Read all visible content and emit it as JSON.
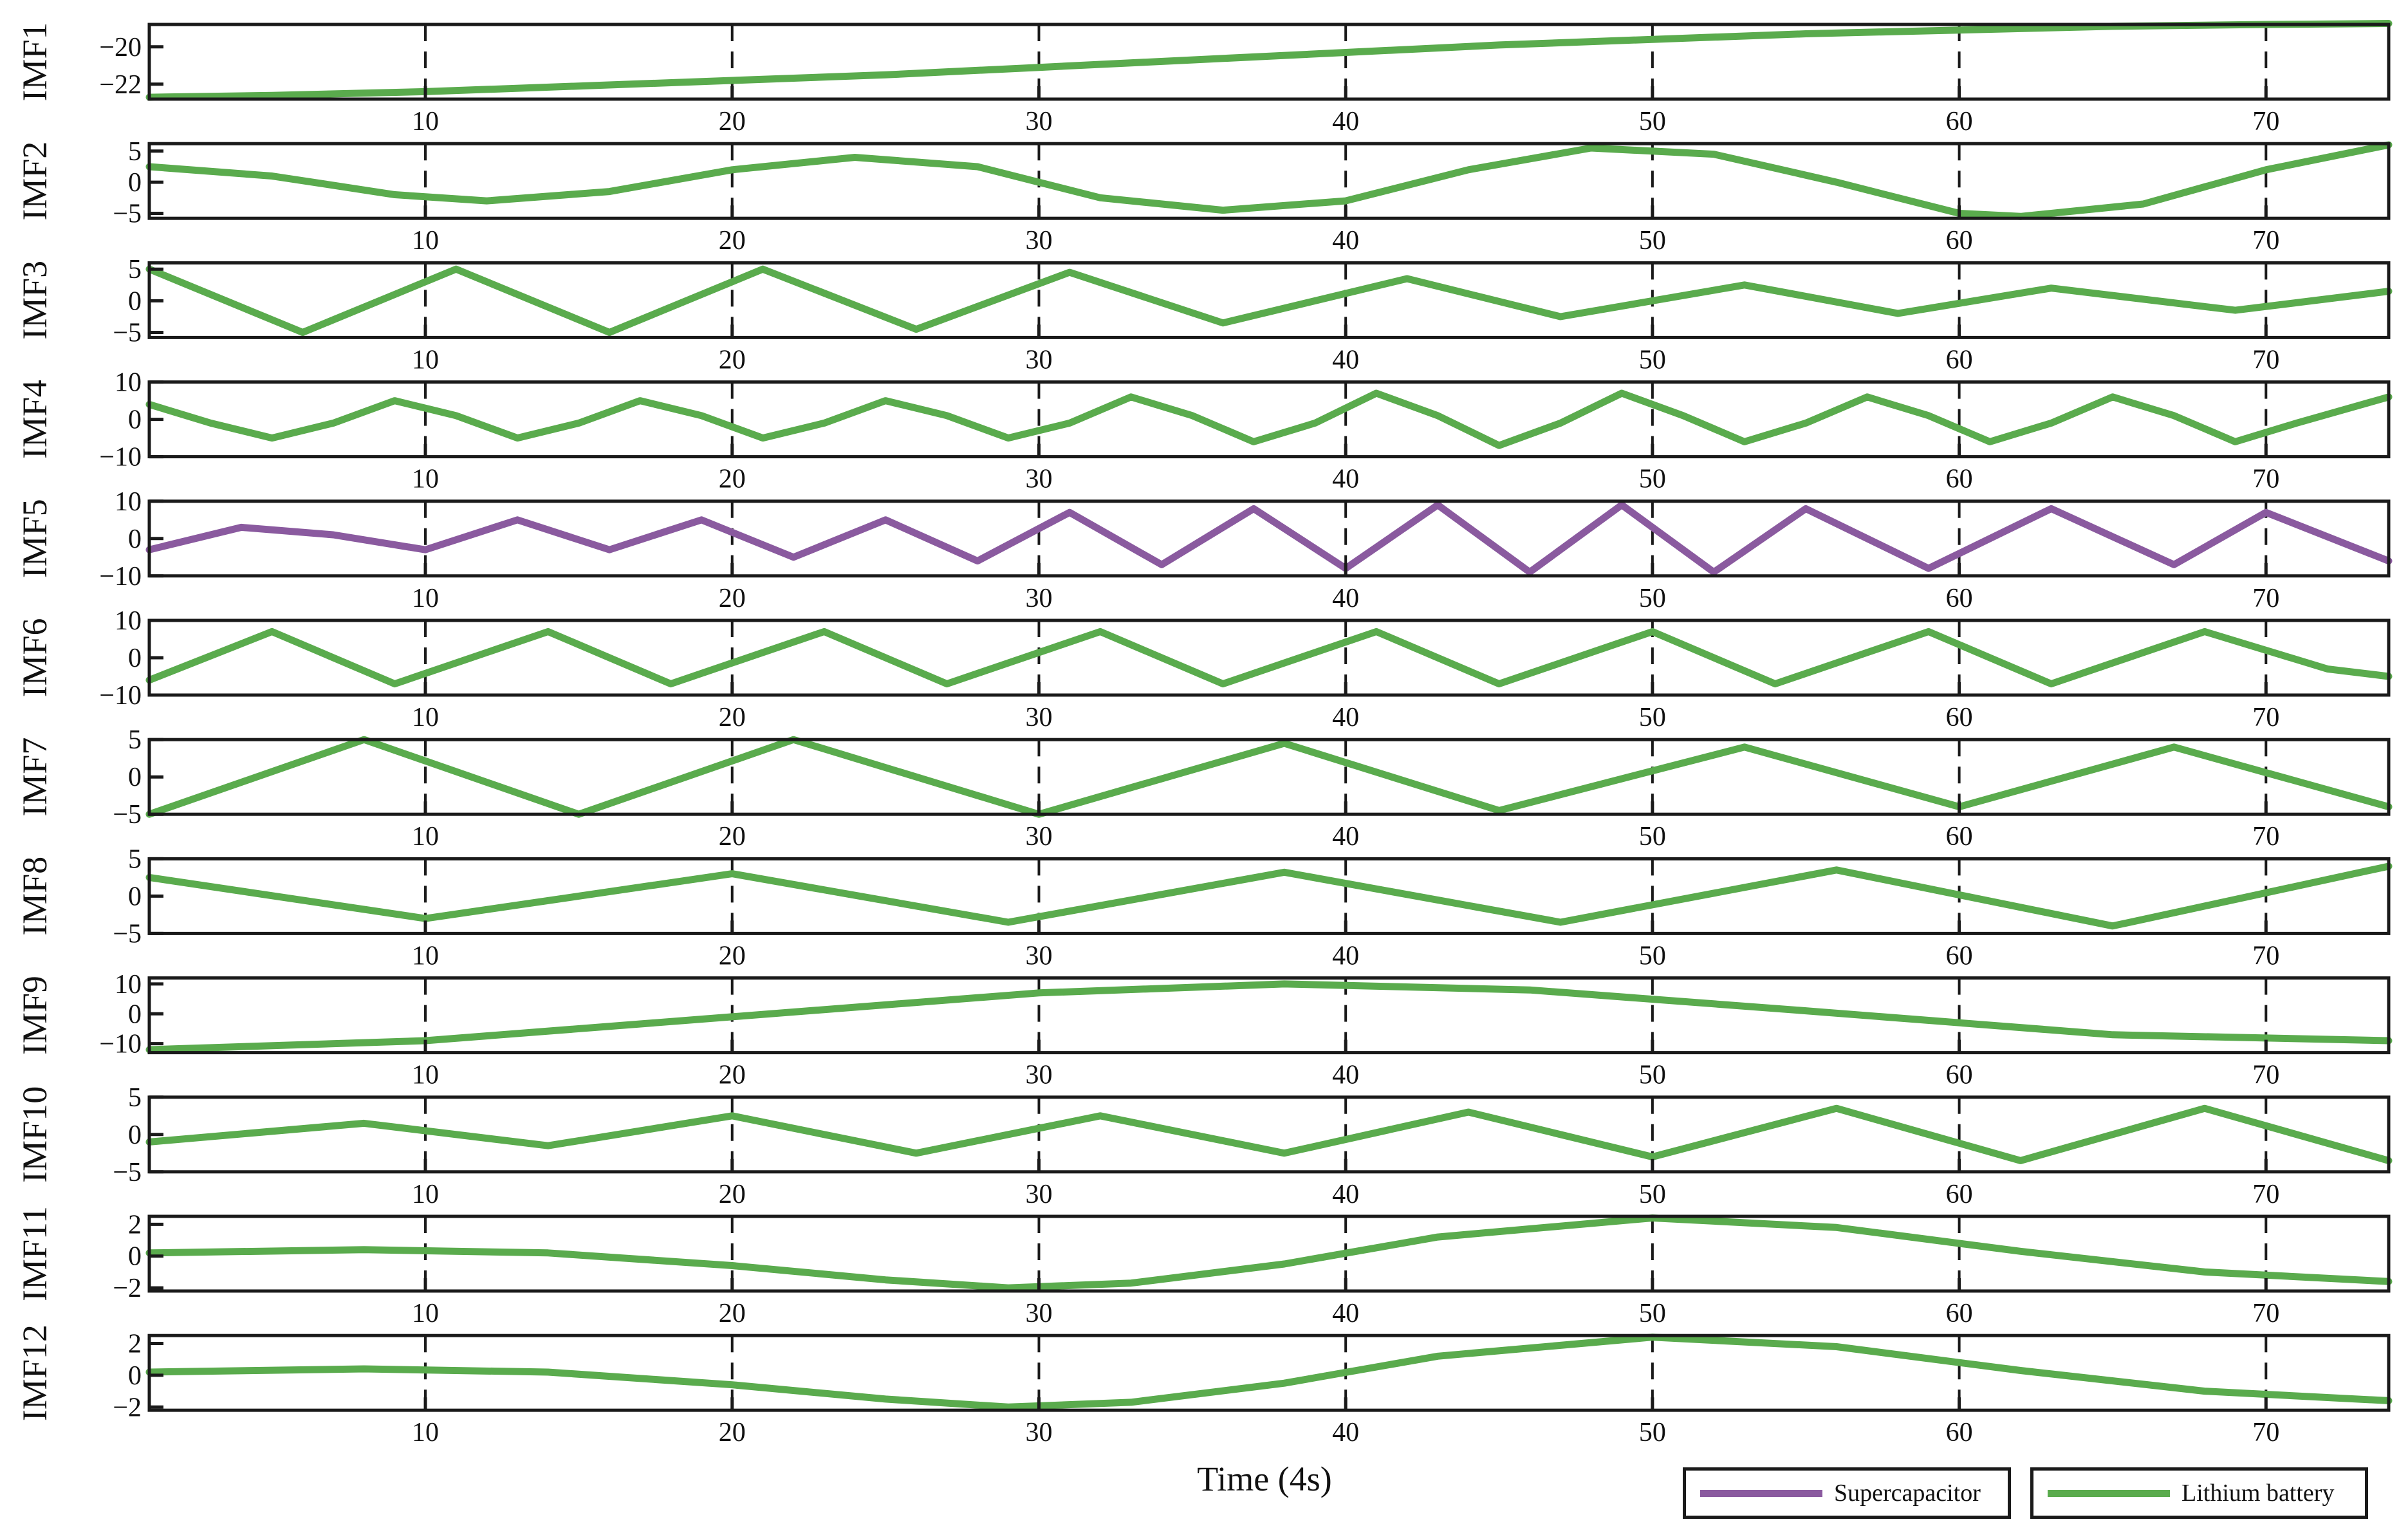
{
  "colors": {
    "supercapacitor": "#8a5a9f",
    "lithium": "#5aab4d",
    "axis": "#1a1a1a",
    "grid": "#1a1a1a"
  },
  "legend": {
    "supercapacitor_label": "Supercapacitor",
    "lithium_label": "Lithium battery"
  },
  "chart_data": {
    "type": "line",
    "xlabel": "Time (4s)",
    "xlim": [
      1,
      74
    ],
    "xticks": [
      10,
      20,
      30,
      40,
      50,
      60,
      70
    ],
    "grid": "dashed vertical lines at x tick positions",
    "legend_placement": "bottom-right",
    "panels": [
      {
        "ylabel": "IMF1",
        "ylim": [
          -22.8,
          -18.8
        ],
        "yticks": [
          -22,
          -20
        ],
        "series": "Lithium battery",
        "x": [
          1,
          5,
          10,
          15,
          20,
          25,
          30,
          35,
          40,
          45,
          50,
          55,
          60,
          65,
          70,
          74
        ],
        "y": [
          -22.7,
          -22.6,
          -22.4,
          -22.1,
          -21.8,
          -21.5,
          -21.1,
          -20.7,
          -20.3,
          -19.9,
          -19.6,
          -19.3,
          -19.1,
          -18.9,
          -18.8,
          -18.75
        ]
      },
      {
        "ylabel": "IMF2",
        "ylim": [
          -5.8,
          6.2
        ],
        "yticks": [
          -5,
          0,
          5
        ],
        "series": "Lithium battery",
        "x": [
          1,
          5,
          9,
          12,
          16,
          20,
          24,
          28,
          32,
          36,
          40,
          44,
          48,
          52,
          56,
          60,
          62,
          66,
          70,
          74
        ],
        "y": [
          2.5,
          1.0,
          -2.0,
          -3.0,
          -1.5,
          2.0,
          4.0,
          2.5,
          -2.5,
          -4.5,
          -3.0,
          2.0,
          5.5,
          4.5,
          0.0,
          -5.0,
          -5.5,
          -3.5,
          2.0,
          6.0
        ]
      },
      {
        "ylabel": "IMF3",
        "ylim": [
          -5.8,
          6.0
        ],
        "yticks": [
          -5,
          0,
          5
        ],
        "series": "Lithium battery",
        "x": [
          1,
          6,
          11,
          16,
          21,
          26,
          31,
          36,
          42,
          47,
          53,
          58,
          63,
          69,
          74
        ],
        "y": [
          5.0,
          -5.0,
          5.0,
          -5.0,
          5.0,
          -4.5,
          4.5,
          -3.5,
          3.5,
          -2.5,
          2.5,
          -2.0,
          2.0,
          -1.5,
          1.5
        ]
      },
      {
        "ylabel": "IMF4",
        "ylim": [
          -10,
          10
        ],
        "yticks": [
          -10,
          0,
          10
        ],
        "series": "Lithium battery",
        "x": [
          1,
          3,
          5,
          7,
          9,
          11,
          13,
          15,
          17,
          19,
          21,
          23,
          25,
          27,
          29,
          31,
          33,
          35,
          37,
          39,
          41,
          43,
          45,
          47,
          49,
          51,
          53,
          55,
          57,
          59,
          61,
          63,
          65,
          67,
          69,
          71,
          74
        ],
        "y": [
          4,
          -1,
          -5,
          -1,
          5,
          1,
          -5,
          -1,
          5,
          1,
          -5,
          -1,
          5,
          1,
          -5,
          -1,
          6,
          1,
          -6,
          -1,
          7,
          1,
          -7,
          -1,
          7,
          1,
          -6,
          -1,
          6,
          1,
          -6,
          -1,
          6,
          1,
          -6,
          -1,
          6
        ]
      },
      {
        "ylabel": "IMF5",
        "ylim": [
          -10,
          10
        ],
        "yticks": [
          -10,
          0,
          10
        ],
        "series": "Supercapacitor",
        "x": [
          1,
          4,
          7,
          10,
          13,
          16,
          19,
          22,
          25,
          28,
          31,
          34,
          37,
          40,
          43,
          46,
          49,
          52,
          55,
          59,
          63,
          67,
          70,
          74
        ],
        "y": [
          -3,
          3,
          1,
          -3,
          5,
          -3,
          5,
          -5,
          5,
          -6,
          7,
          -7,
          8,
          -8,
          9,
          -9,
          9,
          -9,
          8,
          -8,
          8,
          -7,
          7,
          -6
        ]
      },
      {
        "ylabel": "IMF6",
        "ylim": [
          -10,
          10
        ],
        "yticks": [
          -10,
          0,
          10
        ],
        "series": "Lithium battery",
        "x": [
          1,
          5,
          9,
          14,
          18,
          23,
          27,
          32,
          36,
          41,
          45,
          50,
          54,
          59,
          63,
          68,
          72,
          74
        ],
        "y": [
          -6,
          7,
          -7,
          7,
          -7,
          7,
          -7,
          7,
          -7,
          7,
          -7,
          7,
          -7,
          7,
          -7,
          7,
          -3,
          -5
        ]
      },
      {
        "ylabel": "IMF7",
        "ylim": [
          -5,
          5
        ],
        "yticks": [
          -5,
          0,
          5
        ],
        "series": "Lithium battery",
        "x": [
          1,
          8,
          15,
          22,
          30,
          38,
          45,
          53,
          60,
          67,
          74
        ],
        "y": [
          -5,
          5,
          -5,
          5,
          -5,
          4.5,
          -4.5,
          4,
          -4,
          4,
          -4
        ]
      },
      {
        "ylabel": "IMF8",
        "ylim": [
          -5,
          5
        ],
        "yticks": [
          -5,
          0,
          5
        ],
        "series": "Lithium battery",
        "x": [
          1,
          10,
          20,
          29,
          38,
          47,
          56,
          65,
          74
        ],
        "y": [
          2.5,
          -3,
          3,
          -3.5,
          3.2,
          -3.5,
          3.5,
          -4,
          4
        ]
      },
      {
        "ylabel": "IMF9",
        "ylim": [
          -13,
          12
        ],
        "yticks": [
          -10,
          0,
          10
        ],
        "series": "Lithium battery",
        "x": [
          1,
          10,
          20,
          30,
          38,
          46,
          55,
          65,
          74
        ],
        "y": [
          -12,
          -9,
          -1,
          7,
          10,
          8,
          1,
          -7,
          -9
        ]
      },
      {
        "ylabel": "IMF10",
        "ylim": [
          -5,
          5
        ],
        "yticks": [
          -5,
          0,
          5
        ],
        "series": "Lithium battery",
        "x": [
          1,
          8,
          14,
          20,
          26,
          32,
          38,
          44,
          50,
          56,
          62,
          68,
          74
        ],
        "y": [
          -1,
          1.5,
          -1.5,
          2.5,
          -2.5,
          2.5,
          -2.5,
          3,
          -3,
          3.5,
          -3.5,
          3.5,
          -3.5
        ]
      },
      {
        "ylabel": "IMF11",
        "ylim": [
          -2.2,
          2.5
        ],
        "yticks": [
          -2,
          0,
          2
        ],
        "series": "Lithium battery",
        "x": [
          1,
          8,
          14,
          20,
          25,
          29,
          33,
          38,
          43,
          50,
          56,
          62,
          68,
          74
        ],
        "y": [
          0.2,
          0.4,
          0.2,
          -0.6,
          -1.5,
          -2.0,
          -1.7,
          -0.5,
          1.2,
          2.4,
          1.8,
          0.3,
          -1.0,
          -1.6
        ]
      },
      {
        "ylabel": "IMF12",
        "ylim": [
          -2.2,
          2.5
        ],
        "yticks": [
          -2,
          0,
          2
        ],
        "series": "Lithium battery",
        "x": [
          1,
          8,
          14,
          20,
          25,
          29,
          33,
          38,
          43,
          50,
          56,
          62,
          68,
          74
        ],
        "y": [
          0.2,
          0.4,
          0.2,
          -0.6,
          -1.5,
          -2.0,
          -1.7,
          -0.5,
          1.2,
          2.4,
          1.8,
          0.3,
          -1.0,
          -1.6
        ]
      }
    ]
  }
}
